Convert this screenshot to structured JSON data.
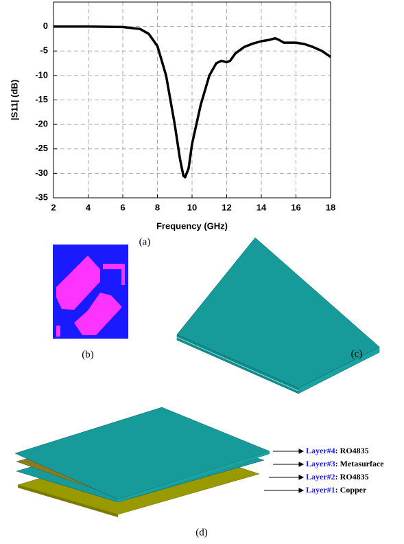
{
  "chart_data": {
    "type": "line",
    "x_label": "Frequency (GHz)",
    "y_label": "|S11| (dB)",
    "x": [
      2,
      4,
      6,
      7,
      7.5,
      8,
      8.5,
      9,
      9.3,
      9.5,
      9.6,
      9.8,
      10,
      10.5,
      11,
      11.4,
      11.7,
      12,
      12.2,
      12.5,
      13,
      13.5,
      14,
      14.5,
      14.8,
      15,
      15.3,
      16,
      16.5,
      17,
      17.5,
      18
    ],
    "series": [
      {
        "color": "#000000",
        "values": [
          0,
          0,
          -0.1,
          -0.5,
          -1.5,
          -4,
          -10,
          -20,
          -27,
          -30.5,
          -30.8,
          -29,
          -24,
          -16,
          -10,
          -7.5,
          -7,
          -7.3,
          -7,
          -5.5,
          -4.2,
          -3.5,
          -3,
          -2.7,
          -2.4,
          -2.7,
          -3.3,
          -3.3,
          -3.6,
          -4.2,
          -5,
          -6.2
        ]
      }
    ],
    "xlim": [
      2,
      18
    ],
    "xticks": [
      2,
      4,
      6,
      8,
      10,
      12,
      14,
      16,
      18
    ],
    "ylim": [
      -35,
      5
    ],
    "yticks": [
      0,
      -5,
      -10,
      -15,
      -20,
      -25,
      -30,
      -35
    ],
    "grid": true
  },
  "captions": {
    "a": "(a)",
    "b": "(b)",
    "c": "(c)",
    "d": "(d)"
  },
  "layers": [
    {
      "name": "Layer#4",
      "material": ": RO4835"
    },
    {
      "name": "Layer#3",
      "material": ": Metasurface"
    },
    {
      "name": "Layer#2",
      "material": ": RO4835"
    },
    {
      "name": "Layer#1",
      "material": ": Copper"
    }
  ]
}
